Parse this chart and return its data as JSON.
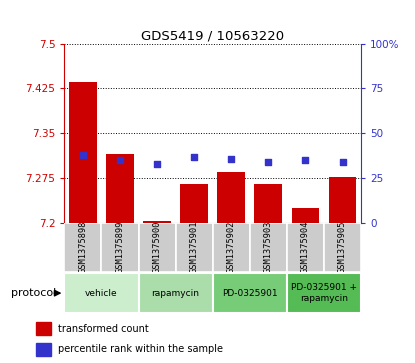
{
  "title": "GDS5419 / 10563220",
  "samples": [
    "GSM1375898",
    "GSM1375899",
    "GSM1375900",
    "GSM1375901",
    "GSM1375902",
    "GSM1375903",
    "GSM1375904",
    "GSM1375905"
  ],
  "bar_values": [
    7.435,
    7.315,
    7.203,
    7.265,
    7.285,
    7.265,
    7.225,
    7.278
  ],
  "bar_baseline": 7.2,
  "blue_values": [
    38,
    35,
    33,
    37,
    36,
    34,
    35,
    34
  ],
  "ylim_left": [
    7.2,
    7.5
  ],
  "ylim_right": [
    0,
    100
  ],
  "yticks_left": [
    7.2,
    7.275,
    7.35,
    7.425,
    7.5
  ],
  "yticks_right": [
    0,
    25,
    50,
    75,
    100
  ],
  "ytick_labels_right": [
    "0",
    "25",
    "50",
    "75",
    "100%"
  ],
  "bar_color": "#cc0000",
  "blue_color": "#3333cc",
  "grid_color": "#000000",
  "title_color": "#000000",
  "left_axis_color": "#cc0000",
  "right_axis_color": "#3333cc",
  "protocols": [
    {
      "label": "vehicle",
      "samples": [
        0,
        1
      ],
      "color": "#cceecc"
    },
    {
      "label": "rapamycin",
      "samples": [
        2,
        3
      ],
      "color": "#aaddaa"
    },
    {
      "label": "PD-0325901",
      "samples": [
        4,
        5
      ],
      "color": "#77cc77"
    },
    {
      "label": "PD-0325901 +\nrapamycin",
      "samples": [
        6,
        7
      ],
      "color": "#55bb55"
    }
  ],
  "legend_items": [
    {
      "label": "transformed count",
      "color": "#cc0000"
    },
    {
      "label": "percentile rank within the sample",
      "color": "#3333cc"
    }
  ],
  "protocol_label": "protocol",
  "bar_width": 0.75,
  "sample_box_color": "#cccccc",
  "bg_color": "#ffffff"
}
